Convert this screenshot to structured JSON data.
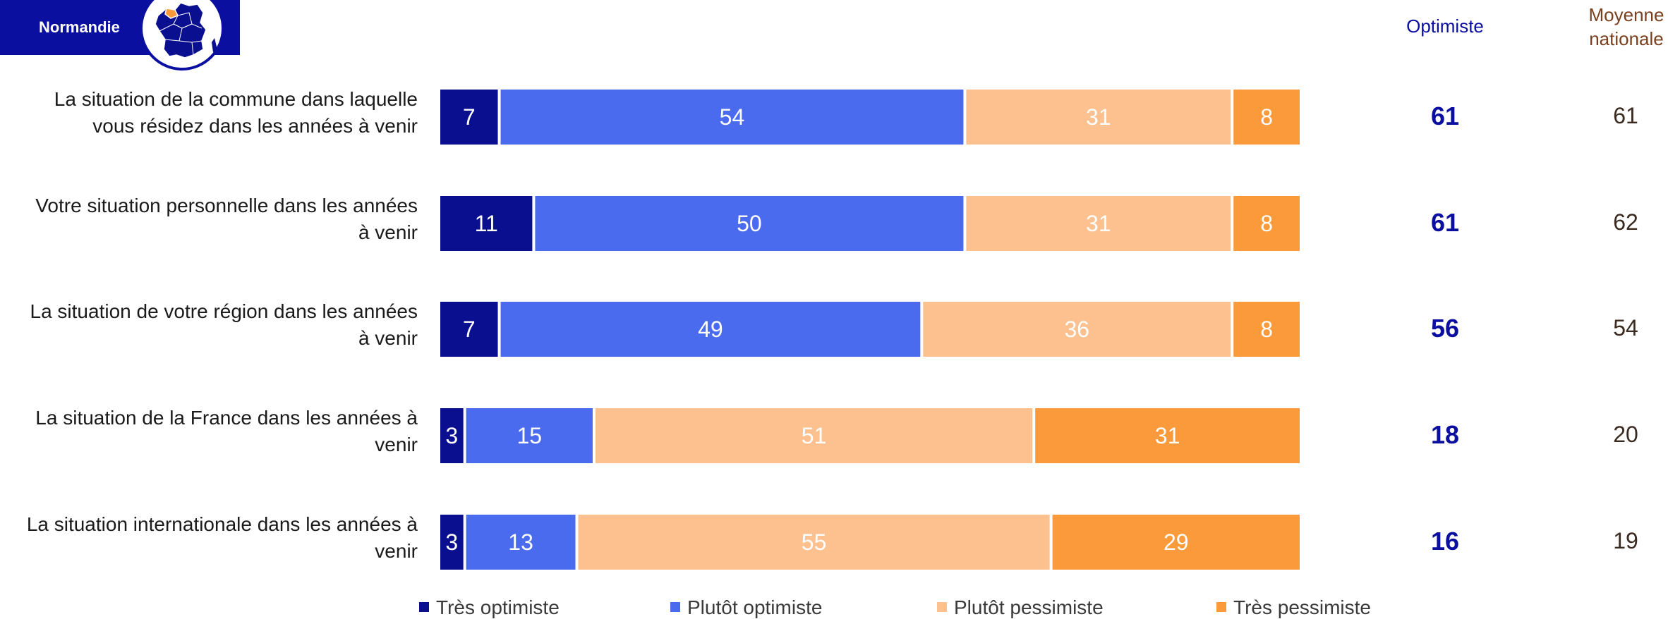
{
  "region": {
    "name": "Normandie",
    "map_icon": "france-map-icon"
  },
  "headers": {
    "optimiste": "Optimiste",
    "moyenne_line1": "Moyenne",
    "moyenne_line2": "nationale"
  },
  "colors": {
    "tres_optimiste": "#0a0f8f",
    "plutot_optimiste": "#4b6bef",
    "plutot_pessimiste": "#fdc08f",
    "tres_pessimiste": "#fb9a3a",
    "header_blue": "#0a0fa0",
    "header_brown": "#7a3f1d"
  },
  "legend": [
    {
      "label": "Très optimiste",
      "color": "#0a0f8f"
    },
    {
      "label": "Plutôt optimiste",
      "color": "#4b6bef"
    },
    {
      "label": "Plutôt pessimiste",
      "color": "#fdc08f"
    },
    {
      "label": "Très pessimiste",
      "color": "#fb9a3a"
    }
  ],
  "chart_data": {
    "type": "bar",
    "orientation": "horizontal",
    "stacked": true,
    "categories": [
      "La situation de la commune dans laquelle vous résidez dans les années à venir",
      "Votre situation personnelle dans les années à venir",
      "La situation de votre région dans les années à venir",
      "La situation de la France dans les années à venir",
      "La situation internationale dans les années à venir"
    ],
    "category_lines": [
      [
        "La situation de la commune dans laquelle",
        "vous résidez dans les années à venir"
      ],
      [
        "Votre situation personnelle dans les années",
        "à venir"
      ],
      [
        "La situation de votre région dans les années",
        "à venir"
      ],
      [
        "La situation de la France dans les années à",
        "venir"
      ],
      [
        "La situation internationale dans les années à",
        "venir"
      ]
    ],
    "series": [
      {
        "name": "Très optimiste",
        "values": [
          7,
          11,
          7,
          3,
          3
        ]
      },
      {
        "name": "Plutôt optimiste",
        "values": [
          54,
          50,
          49,
          15,
          13
        ]
      },
      {
        "name": "Plutôt pessimiste",
        "values": [
          31,
          31,
          36,
          51,
          55
        ]
      },
      {
        "name": "Très pessimiste",
        "values": [
          8,
          8,
          8,
          31,
          29
        ]
      }
    ],
    "optimiste": [
      61,
      61,
      56,
      18,
      16
    ],
    "moyenne_nationale": [
      61,
      62,
      54,
      20,
      19
    ],
    "legend_position": "bottom",
    "grid": false
  }
}
